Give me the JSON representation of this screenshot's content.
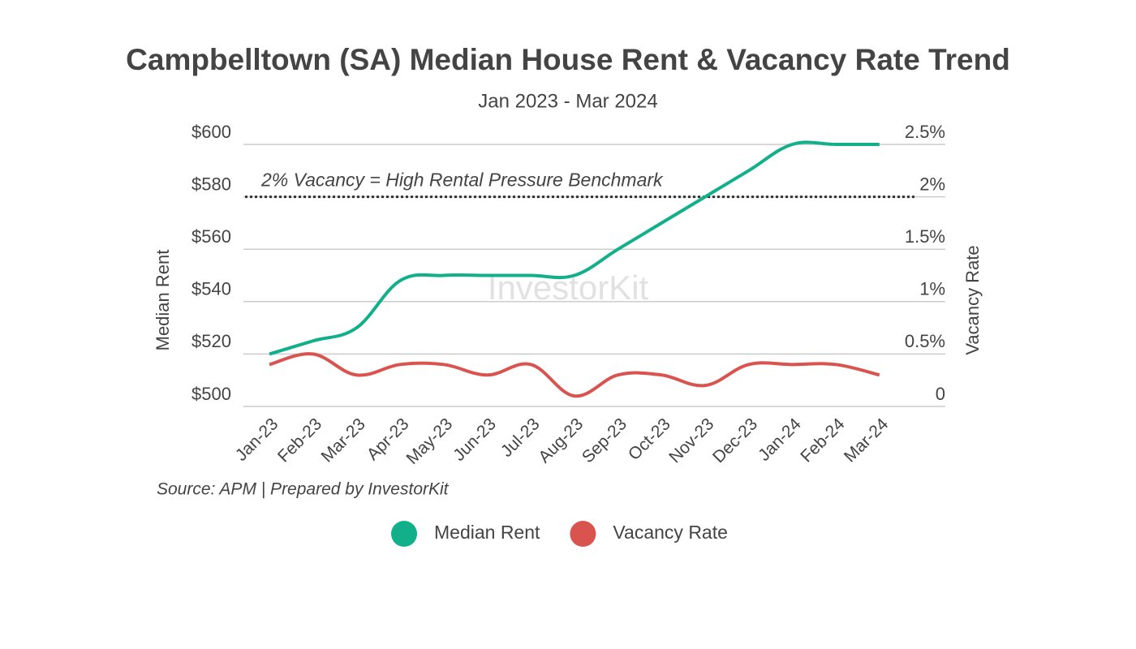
{
  "chart_data": {
    "type": "line",
    "title": "Campbelltown (SA) Median House Rent & Vacancy Rate Trend",
    "subtitle": "Jan 2023 - Mar 2024",
    "y_label": "Median Rent",
    "y2_label": "Vacancy Rate",
    "source": "Source: APM | Prepared by InvestorKit",
    "watermark": "InvestorKit",
    "categories": [
      "Jan-23",
      "Feb-23",
      "Mar-23",
      "Apr-23",
      "May-23",
      "Jun-23",
      "Jul-23",
      "Aug-23",
      "Sep-23",
      "Oct-23",
      "Nov-23",
      "Dec-23",
      "Jan-24",
      "Feb-24",
      "Mar-24"
    ],
    "series": [
      {
        "name": "Median Rent",
        "color": "#12b08a",
        "values": [
          520,
          525,
          530,
          548,
          550,
          550,
          550,
          550,
          560,
          570,
          580,
          590,
          600,
          600,
          600
        ]
      },
      {
        "name": "Vacancy Rate",
        "color": "#d9534f",
        "axis": "y2",
        "values": [
          0.4,
          0.5,
          0.3,
          0.4,
          0.4,
          0.3,
          0.4,
          0.1,
          0.3,
          0.3,
          0.2,
          0.4,
          0.4,
          0.4,
          0.3
        ]
      }
    ],
    "ylim": [
      500,
      600
    ],
    "yticks": [
      {
        "value": 500,
        "label": "$500"
      },
      {
        "value": 520,
        "label": "$520"
      },
      {
        "value": 540,
        "label": "$540"
      },
      {
        "value": 560,
        "label": "$560"
      },
      {
        "value": 580,
        "label": "$580"
      },
      {
        "value": 600,
        "label": "$600"
      }
    ],
    "y2lim": [
      0,
      2.5
    ],
    "y2ticks": [
      0,
      {
        "value": 0.5,
        "label": "0.5%"
      },
      {
        "value": 1,
        "label": "1%"
      },
      {
        "value": 1.5,
        "label": "1.5%"
      },
      {
        "value": 2,
        "label": "2%"
      },
      {
        "value": 2.5,
        "label": "2.5%"
      }
    ],
    "benchmark": {
      "label": "2% Vacancy = High Rental Pressure Benchmark",
      "value": 2,
      "axis": "y2"
    },
    "grid": true,
    "legend": "bottom"
  }
}
